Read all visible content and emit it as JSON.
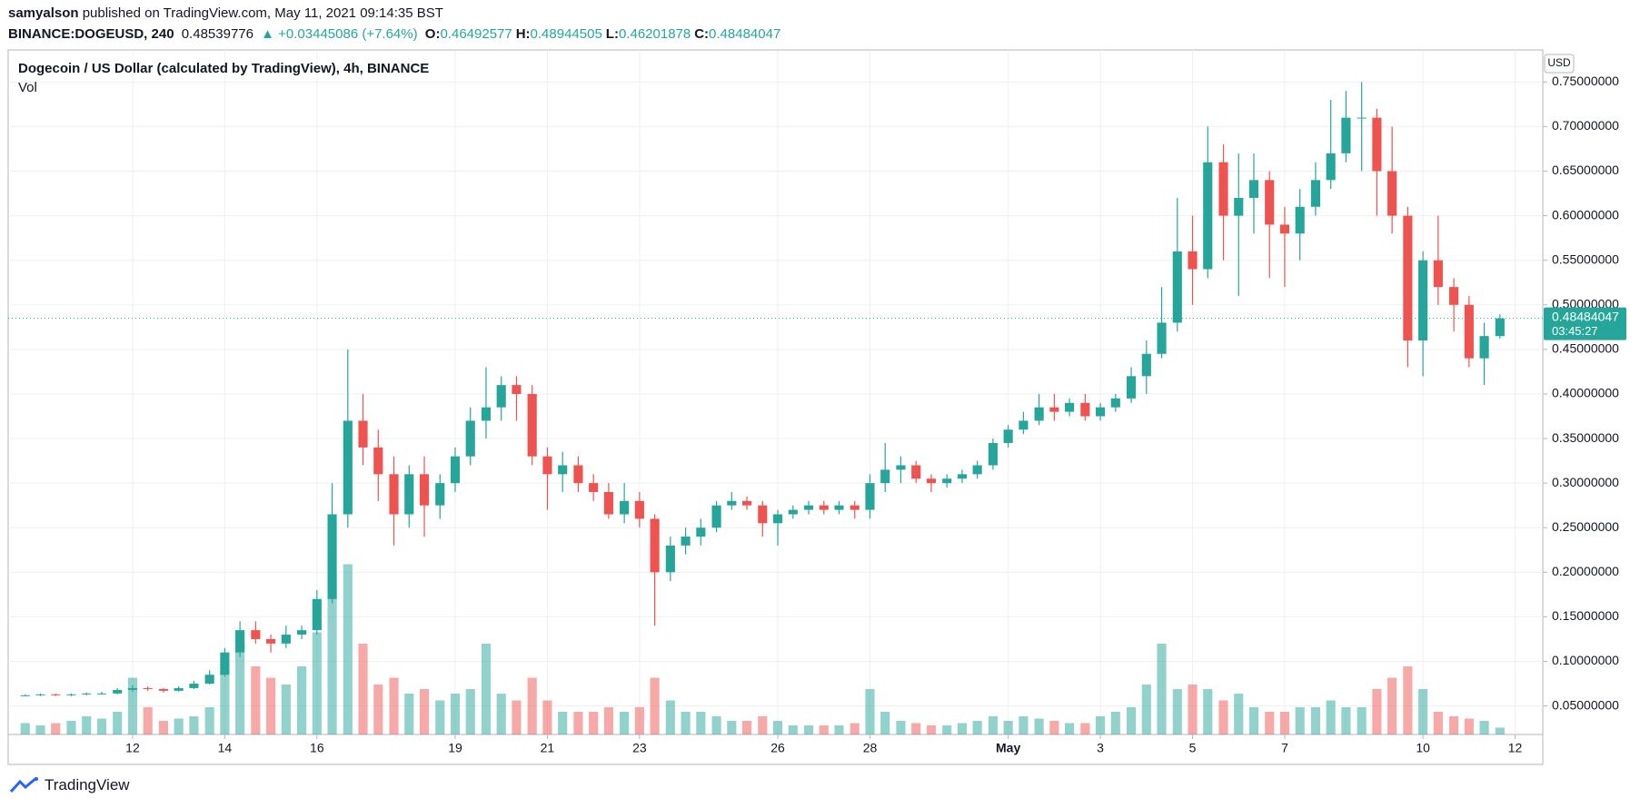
{
  "header": {
    "user": "samyalson",
    "published": "published on TradingView.com, May 11, 2021 09:14:35 BST",
    "symbol": "BINANCE:DOGEUSD, 240",
    "price": "0.48539776",
    "change": "▲ +0.03445086 (+7.64%)",
    "ohlc": [
      {
        "label": "O:",
        "value": "0.46492577"
      },
      {
        "label": "H:",
        "value": "0.48944505"
      },
      {
        "label": "L:",
        "value": "0.46201878"
      },
      {
        "label": "C:",
        "value": "0.48484047"
      }
    ]
  },
  "chart_data": {
    "type": "candlestick",
    "title": "Dogecoin / US Dollar (calculated by TradingView), 4h, BINANCE",
    "volume_label": "Vol",
    "currency": "USD",
    "countdown": "03:45:27",
    "up_color": "#26a69a",
    "down_color": "#ef5350",
    "grid": true,
    "xlim": [
      9.3,
      42.6
    ],
    "ylim": [
      0.018,
      0.786
    ],
    "xticks": [
      12,
      14,
      16,
      19,
      21,
      23,
      26,
      28,
      {
        "value": 31,
        "label": "May"
      },
      {
        "value": 33,
        "label": "3"
      },
      {
        "value": 35,
        "label": "5"
      },
      {
        "value": 37,
        "label": "7"
      },
      {
        "value": 40,
        "label": "10"
      },
      {
        "value": 42,
        "label": "12"
      }
    ],
    "yticks": [
      {
        "value": 0.05,
        "label": "0.05000000"
      },
      {
        "value": 0.1,
        "label": "0.10000000"
      },
      {
        "value": 0.15,
        "label": "0.15000000"
      },
      {
        "value": 0.2,
        "label": "0.20000000"
      },
      {
        "value": 0.25,
        "label": "0.25000000"
      },
      {
        "value": 0.3,
        "label": "0.30000000"
      },
      {
        "value": 0.35,
        "label": "0.35000000"
      },
      {
        "value": 0.4,
        "label": "0.40000000"
      },
      {
        "value": 0.45,
        "label": "0.45000000"
      },
      {
        "value": 0.5,
        "label": "0.50000000"
      },
      {
        "value": 0.55,
        "label": "0.55000000"
      },
      {
        "value": 0.6,
        "label": "0.60000000"
      },
      {
        "value": 0.65,
        "label": "0.65000000"
      },
      {
        "value": 0.7,
        "label": "0.70000000"
      },
      {
        "value": 0.75,
        "label": "0.75000000"
      }
    ],
    "x": [
      9.67,
      10,
      10.33,
      10.67,
      11,
      11.33,
      11.67,
      12,
      12.33,
      12.67,
      13,
      13.33,
      13.67,
      14,
      14.33,
      14.67,
      15,
      15.33,
      15.67,
      16,
      16.33,
      16.67,
      17,
      17.33,
      17.67,
      18,
      18.33,
      18.67,
      19,
      19.33,
      19.67,
      20,
      20.33,
      20.67,
      21,
      21.33,
      21.67,
      22,
      22.33,
      22.67,
      23,
      23.33,
      23.67,
      24,
      24.33,
      24.67,
      25,
      25.33,
      25.67,
      26,
      26.33,
      26.67,
      27,
      27.33,
      27.67,
      28,
      28.33,
      28.67,
      29,
      29.33,
      29.67,
      30,
      30.33,
      30.67,
      31,
      31.33,
      31.67,
      32,
      32.33,
      32.67,
      33,
      33.33,
      33.67,
      34,
      34.33,
      34.67,
      35,
      35.33,
      35.67,
      36,
      36.33,
      36.67,
      37,
      37.33,
      37.67,
      38,
      38.33,
      38.67,
      39,
      39.33,
      39.67,
      40,
      40.33,
      40.67,
      41,
      41.33,
      41.67
    ],
    "ohlc": [
      [
        0.062,
        0.063,
        0.061,
        0.062
      ],
      [
        0.062,
        0.064,
        0.061,
        0.063
      ],
      [
        0.063,
        0.064,
        0.061,
        0.062
      ],
      [
        0.062,
        0.064,
        0.061,
        0.063
      ],
      [
        0.063,
        0.065,
        0.062,
        0.064
      ],
      [
        0.064,
        0.066,
        0.063,
        0.064
      ],
      [
        0.064,
        0.07,
        0.063,
        0.068
      ],
      [
        0.068,
        0.073,
        0.066,
        0.07
      ],
      [
        0.07,
        0.072,
        0.067,
        0.069
      ],
      [
        0.069,
        0.07,
        0.065,
        0.067
      ],
      [
        0.067,
        0.072,
        0.066,
        0.07
      ],
      [
        0.07,
        0.078,
        0.069,
        0.075
      ],
      [
        0.075,
        0.09,
        0.074,
        0.085
      ],
      [
        0.085,
        0.115,
        0.083,
        0.11
      ],
      [
        0.11,
        0.145,
        0.105,
        0.135
      ],
      [
        0.135,
        0.145,
        0.12,
        0.125
      ],
      [
        0.125,
        0.13,
        0.11,
        0.12
      ],
      [
        0.12,
        0.14,
        0.115,
        0.13
      ],
      [
        0.13,
        0.14,
        0.125,
        0.135
      ],
      [
        0.135,
        0.18,
        0.13,
        0.17
      ],
      [
        0.17,
        0.3,
        0.165,
        0.265
      ],
      [
        0.265,
        0.45,
        0.25,
        0.37
      ],
      [
        0.37,
        0.4,
        0.32,
        0.34
      ],
      [
        0.34,
        0.36,
        0.28,
        0.31
      ],
      [
        0.31,
        0.33,
        0.23,
        0.265
      ],
      [
        0.265,
        0.32,
        0.25,
        0.31
      ],
      [
        0.31,
        0.33,
        0.24,
        0.275
      ],
      [
        0.275,
        0.31,
        0.26,
        0.3
      ],
      [
        0.3,
        0.34,
        0.29,
        0.33
      ],
      [
        0.33,
        0.385,
        0.32,
        0.37
      ],
      [
        0.37,
        0.43,
        0.35,
        0.385
      ],
      [
        0.385,
        0.42,
        0.37,
        0.41
      ],
      [
        0.41,
        0.42,
        0.37,
        0.4
      ],
      [
        0.4,
        0.41,
        0.32,
        0.33
      ],
      [
        0.33,
        0.34,
        0.27,
        0.31
      ],
      [
        0.31,
        0.335,
        0.29,
        0.32
      ],
      [
        0.32,
        0.33,
        0.29,
        0.3
      ],
      [
        0.3,
        0.31,
        0.28,
        0.29
      ],
      [
        0.29,
        0.3,
        0.26,
        0.265
      ],
      [
        0.265,
        0.3,
        0.255,
        0.28
      ],
      [
        0.28,
        0.29,
        0.25,
        0.26
      ],
      [
        0.26,
        0.265,
        0.14,
        0.2
      ],
      [
        0.2,
        0.24,
        0.19,
        0.23
      ],
      [
        0.23,
        0.25,
        0.22,
        0.24
      ],
      [
        0.24,
        0.26,
        0.23,
        0.25
      ],
      [
        0.25,
        0.28,
        0.245,
        0.275
      ],
      [
        0.275,
        0.29,
        0.27,
        0.28
      ],
      [
        0.28,
        0.285,
        0.27,
        0.275
      ],
      [
        0.275,
        0.28,
        0.24,
        0.255
      ],
      [
        0.255,
        0.27,
        0.23,
        0.265
      ],
      [
        0.265,
        0.275,
        0.26,
        0.27
      ],
      [
        0.27,
        0.28,
        0.265,
        0.275
      ],
      [
        0.275,
        0.28,
        0.265,
        0.27
      ],
      [
        0.27,
        0.28,
        0.265,
        0.275
      ],
      [
        0.275,
        0.28,
        0.26,
        0.27
      ],
      [
        0.27,
        0.31,
        0.26,
        0.3
      ],
      [
        0.3,
        0.345,
        0.29,
        0.315
      ],
      [
        0.315,
        0.33,
        0.3,
        0.32
      ],
      [
        0.32,
        0.325,
        0.3,
        0.305
      ],
      [
        0.305,
        0.31,
        0.29,
        0.3
      ],
      [
        0.3,
        0.31,
        0.295,
        0.305
      ],
      [
        0.305,
        0.315,
        0.3,
        0.31
      ],
      [
        0.31,
        0.325,
        0.305,
        0.32
      ],
      [
        0.32,
        0.35,
        0.315,
        0.345
      ],
      [
        0.345,
        0.365,
        0.34,
        0.36
      ],
      [
        0.36,
        0.38,
        0.355,
        0.37
      ],
      [
        0.37,
        0.4,
        0.365,
        0.385
      ],
      [
        0.385,
        0.4,
        0.37,
        0.38
      ],
      [
        0.38,
        0.395,
        0.375,
        0.39
      ],
      [
        0.39,
        0.4,
        0.37,
        0.375
      ],
      [
        0.375,
        0.39,
        0.37,
        0.385
      ],
      [
        0.385,
        0.4,
        0.38,
        0.395
      ],
      [
        0.395,
        0.43,
        0.39,
        0.42
      ],
      [
        0.42,
        0.46,
        0.4,
        0.445
      ],
      [
        0.445,
        0.52,
        0.44,
        0.48
      ],
      [
        0.48,
        0.62,
        0.47,
        0.56
      ],
      [
        0.56,
        0.6,
        0.5,
        0.54
      ],
      [
        0.54,
        0.7,
        0.53,
        0.66
      ],
      [
        0.66,
        0.68,
        0.55,
        0.6
      ],
      [
        0.6,
        0.67,
        0.51,
        0.62
      ],
      [
        0.62,
        0.67,
        0.58,
        0.64
      ],
      [
        0.64,
        0.65,
        0.53,
        0.59
      ],
      [
        0.59,
        0.61,
        0.52,
        0.58
      ],
      [
        0.58,
        0.63,
        0.55,
        0.61
      ],
      [
        0.61,
        0.66,
        0.6,
        0.64
      ],
      [
        0.64,
        0.73,
        0.63,
        0.67
      ],
      [
        0.67,
        0.74,
        0.66,
        0.71
      ],
      [
        0.71,
        0.75,
        0.65,
        0.71
      ],
      [
        0.71,
        0.72,
        0.6,
        0.65
      ],
      [
        0.65,
        0.7,
        0.58,
        0.6
      ],
      [
        0.6,
        0.61,
        0.43,
        0.46
      ],
      [
        0.46,
        0.56,
        0.42,
        0.55
      ],
      [
        0.55,
        0.6,
        0.5,
        0.52
      ],
      [
        0.52,
        0.53,
        0.47,
        0.5
      ],
      [
        0.5,
        0.51,
        0.43,
        0.44
      ],
      [
        0.44,
        0.48,
        0.41,
        0.465
      ],
      [
        0.46492577,
        0.48944505,
        0.46201878,
        0.48484047
      ]
    ],
    "volume": [
      5,
      4,
      5,
      6,
      8,
      7,
      10,
      25,
      12,
      6,
      7,
      8,
      12,
      28,
      40,
      30,
      25,
      22,
      30,
      45,
      70,
      75,
      40,
      22,
      25,
      18,
      20,
      15,
      18,
      20,
      40,
      18,
      15,
      25,
      15,
      10,
      10,
      10,
      12,
      10,
      12,
      25,
      15,
      10,
      10,
      8,
      6,
      6,
      8,
      6,
      4,
      4,
      4,
      4,
      5,
      20,
      10,
      6,
      5,
      4,
      4,
      5,
      6,
      8,
      6,
      8,
      7,
      6,
      5,
      5,
      8,
      10,
      12,
      22,
      40,
      20,
      22,
      20,
      15,
      18,
      12,
      10,
      10,
      12,
      12,
      15,
      12,
      12,
      20,
      25,
      30,
      20,
      10,
      8,
      7,
      6,
      3
    ]
  }
}
